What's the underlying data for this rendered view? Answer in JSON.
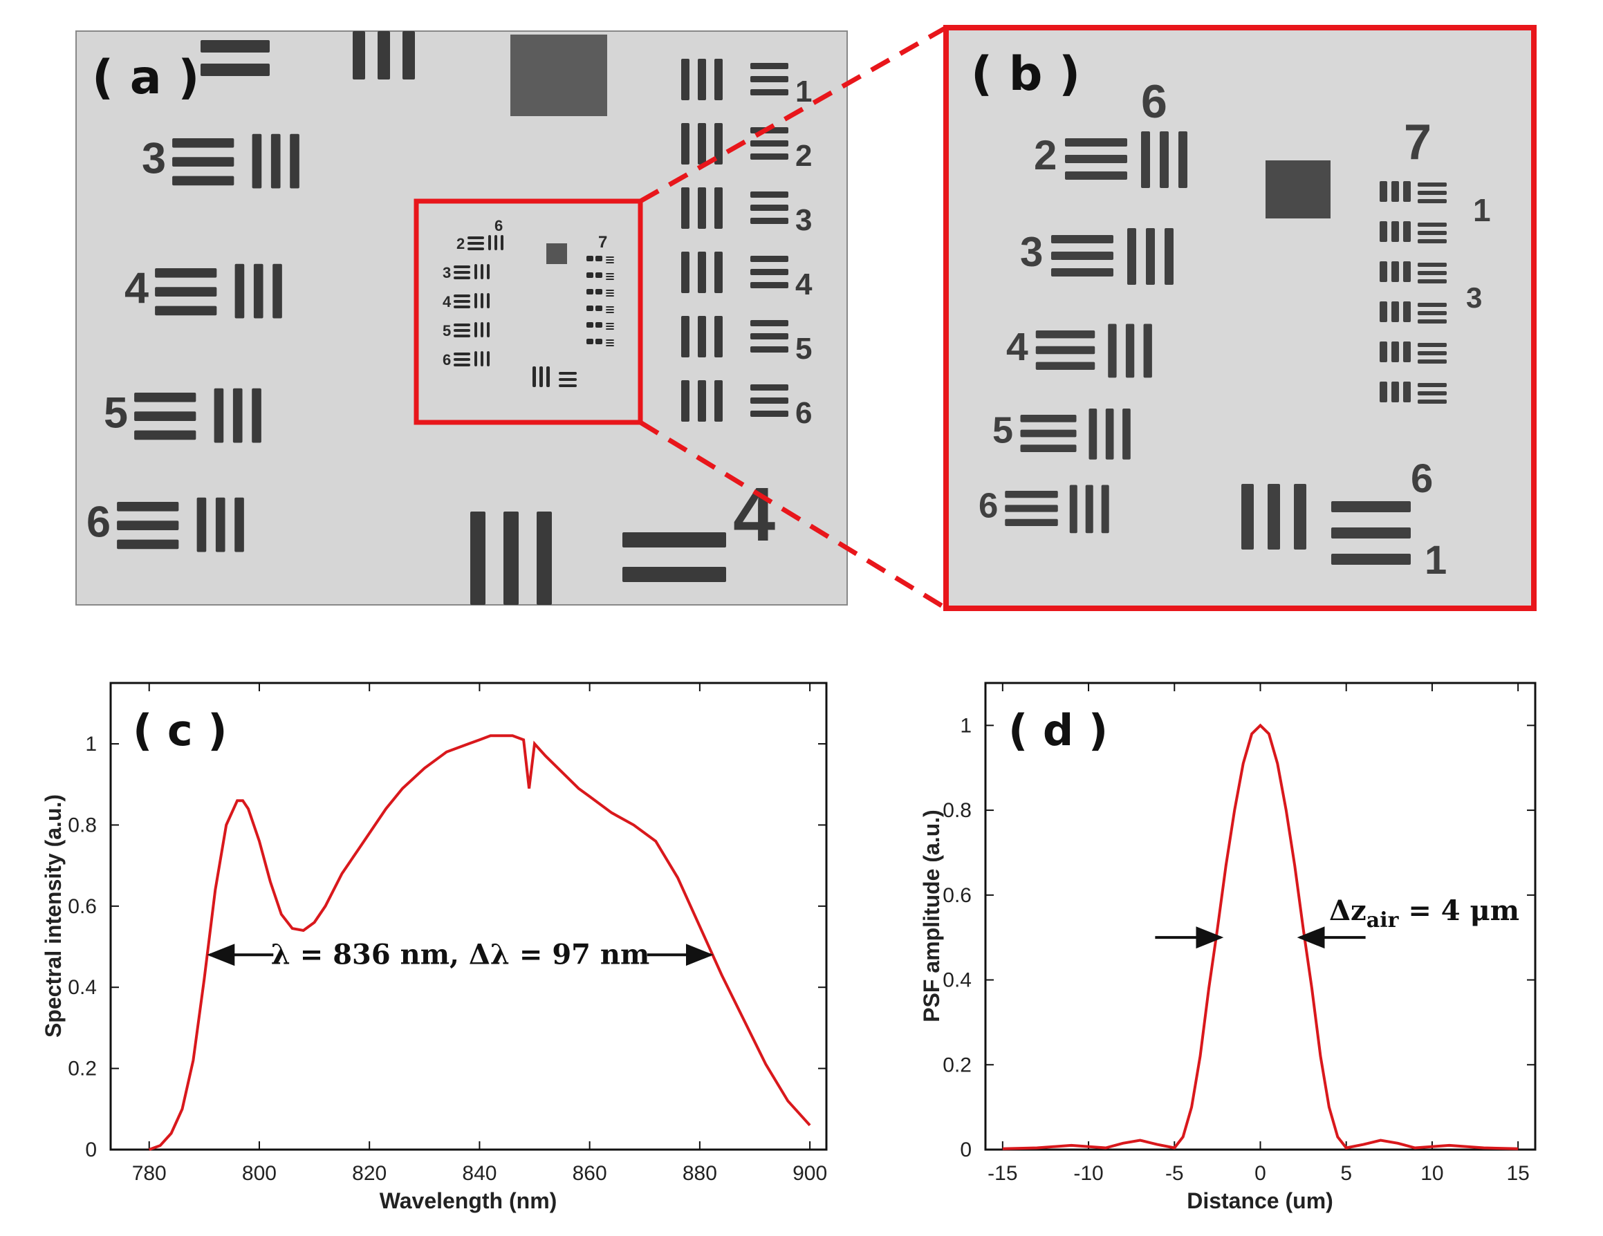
{
  "panels": {
    "a": {
      "label": "( a )"
    },
    "b": {
      "label": "( b )"
    },
    "c": {
      "label": "( c )"
    },
    "d": {
      "label": "( d )"
    }
  },
  "target": {
    "group_main": {
      "elements": [
        "2",
        "3",
        "4",
        "5",
        "6"
      ],
      "right_elements": [
        "1",
        "2",
        "3",
        "4",
        "5",
        "6"
      ],
      "bottom_group": "4"
    },
    "group_inner": {
      "group6": "6",
      "group7": "7",
      "elements6": [
        "2",
        "3",
        "4",
        "5",
        "6"
      ],
      "elements7": [
        "1",
        "3"
      ],
      "bottom_group": "6",
      "bottom_element": "1"
    }
  },
  "colors": {
    "accent": "#e8161b",
    "curve": "#d9181c",
    "target_bg": "#d7d7d7",
    "bar": "#3a3a3a"
  },
  "chart_data": [
    {
      "type": "line",
      "panel": "c",
      "title": "",
      "xlabel": "Wavelength (nm)",
      "ylabel": "Spectral intensity (a.u.)",
      "xlim": [
        773,
        903
      ],
      "ylim": [
        0,
        1.15
      ],
      "xticks": [
        780,
        800,
        820,
        840,
        860,
        880,
        900
      ],
      "yticks": [
        0,
        0.2,
        0.4,
        0.6,
        0.8,
        1
      ],
      "grid": false,
      "series": [
        {
          "x": [
            780,
            782,
            784,
            786,
            788,
            790,
            792,
            794,
            796,
            797,
            798,
            800,
            802,
            804,
            806,
            808,
            810,
            812,
            815,
            818,
            820,
            823,
            826,
            830,
            834,
            838,
            840,
            842,
            844,
            846,
            848,
            849,
            850,
            852,
            855,
            858,
            860,
            864,
            868,
            872,
            876,
            880,
            884,
            888,
            892,
            896,
            900
          ],
          "y": [
            0.0,
            0.01,
            0.04,
            0.1,
            0.22,
            0.42,
            0.64,
            0.8,
            0.86,
            0.86,
            0.84,
            0.76,
            0.66,
            0.58,
            0.545,
            0.54,
            0.56,
            0.6,
            0.68,
            0.74,
            0.78,
            0.84,
            0.89,
            0.94,
            0.98,
            1.0,
            1.01,
            1.02,
            1.02,
            1.02,
            1.01,
            0.89,
            1.0,
            0.97,
            0.93,
            0.89,
            0.87,
            0.83,
            0.8,
            0.76,
            0.67,
            0.55,
            0.43,
            0.32,
            0.21,
            0.12,
            0.06
          ]
        }
      ],
      "annotations": [
        {
          "text": "λ = 836 nm, Δλ = 97 nm",
          "arrow_left_x": 791,
          "arrow_right_x": 882,
          "y": 0.48
        }
      ]
    },
    {
      "type": "line",
      "panel": "d",
      "title": "",
      "xlabel": "Distance (um)",
      "ylabel": "PSF amplitude (a.u.)",
      "xlim": [
        -16,
        16
      ],
      "ylim": [
        0,
        1.1
      ],
      "xticks": [
        -15,
        -10,
        -5,
        0,
        5,
        10,
        15
      ],
      "yticks": [
        0,
        0.2,
        0.4,
        0.6,
        0.8,
        1
      ],
      "grid": false,
      "series": [
        {
          "x": [
            -15,
            -13,
            -11,
            -9,
            -8,
            -7,
            -6,
            -5,
            -4.5,
            -4,
            -3.5,
            -3,
            -2.5,
            -2,
            -1.5,
            -1,
            -0.5,
            0,
            0.5,
            1,
            1.5,
            2,
            2.5,
            3,
            3.5,
            4,
            4.5,
            5,
            6,
            7,
            8,
            9,
            11,
            13,
            15
          ],
          "y": [
            0.002,
            0.004,
            0.01,
            0.004,
            0.015,
            0.022,
            0.012,
            0.004,
            0.03,
            0.1,
            0.22,
            0.38,
            0.52,
            0.67,
            0.8,
            0.91,
            0.98,
            1.0,
            0.98,
            0.91,
            0.8,
            0.67,
            0.52,
            0.38,
            0.22,
            0.1,
            0.03,
            0.004,
            0.012,
            0.022,
            0.015,
            0.004,
            0.01,
            0.004,
            0.002
          ]
        }
      ],
      "annotations": [
        {
          "text": "Δz",
          "subscript": "air",
          "suffix": " = 4 μm",
          "left_arrow_tip": -2.3,
          "right_arrow_tip": 2.3,
          "y": 0.5
        }
      ]
    }
  ]
}
